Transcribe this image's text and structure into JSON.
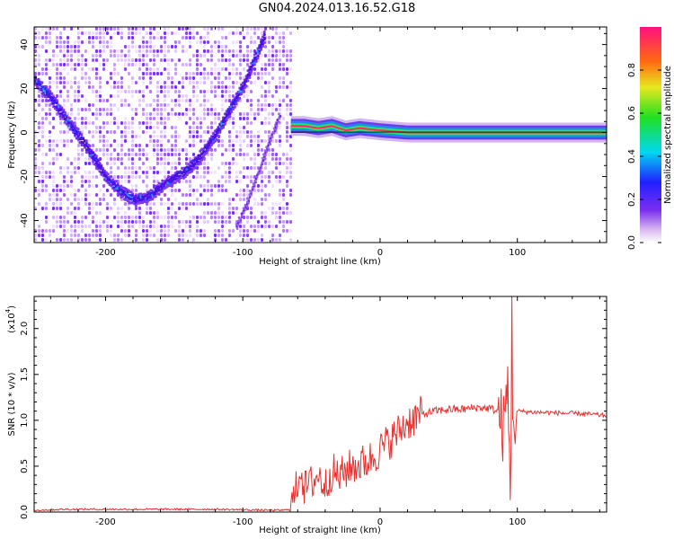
{
  "title": "GN04.2024.013.16.52.G18",
  "chart_data": [
    {
      "type": "heatmap",
      "panel": "top",
      "xlabel": "Height of straight line (km)",
      "ylabel": "Frequency (Hz)",
      "xlim": [
        -252,
        165
      ],
      "ylim": [
        -50,
        48
      ],
      "xticks": [
        -200,
        -100,
        0,
        100
      ],
      "xtick_labels": [
        "-200",
        "-100",
        "0",
        "100"
      ],
      "yticks": [
        -40,
        -20,
        0,
        20,
        40
      ],
      "ytick_labels": [
        "-40",
        "-20",
        "0",
        "20",
        "40"
      ],
      "noise_region_end_km": -65,
      "curve_a": {
        "name": "Doppler arc",
        "x": [
          -252,
          -240,
          -230,
          -220,
          -210,
          -200,
          -190,
          -180,
          -170,
          -160,
          -150,
          -140,
          -130,
          -120,
          -110,
          -100,
          -92,
          -85
        ],
        "y": [
          24,
          16,
          7,
          -1,
          -10,
          -20,
          -26,
          -30,
          -29,
          -24,
          -20,
          -16,
          -9,
          0,
          11,
          22,
          34,
          44
        ]
      },
      "curve_b": {
        "name": "secondary arc",
        "x": [
          -105,
          -98,
          -92,
          -86,
          -80,
          -74
        ],
        "y": [
          -42,
          -32,
          -22,
          -12,
          -2,
          8
        ]
      },
      "signal_line": {
        "x": [
          -65,
          -55,
          -45,
          -35,
          -25,
          -15,
          0,
          20,
          50,
          80,
          100,
          130,
          165
        ],
        "y": [
          3,
          3,
          2,
          3,
          1,
          2,
          1,
          0,
          0,
          0,
          0,
          0,
          0
        ]
      },
      "colorbar": {
        "label": "Normalized spectral amplitude",
        "range": [
          0.0,
          1.0
        ],
        "ticks": [
          0.0,
          0.2,
          0.4,
          0.6,
          0.8
        ],
        "tick_labels": [
          "0.0",
          "0.2",
          "0.4",
          "0.6",
          "0.8"
        ]
      }
    },
    {
      "type": "line",
      "panel": "bottom",
      "xlabel": "Height of straight line (km)",
      "ylabel": "SNR (10 * v/v)",
      "y_exponent_label": "(x10",
      "y_exponent": "4",
      "y_exponent_close": ")",
      "xlim": [
        -252,
        165
      ],
      "ylim": [
        0,
        2.35
      ],
      "xticks": [
        -200,
        -100,
        0,
        100
      ],
      "xtick_labels": [
        "-200",
        "-100",
        "0",
        "100"
      ],
      "yticks": [
        0.0,
        0.5,
        1.0,
        1.5,
        2.0
      ],
      "ytick_labels": [
        "0.0",
        "0.5",
        "1.0",
        "1.5",
        "2.0"
      ],
      "series": [
        {
          "name": "SNR",
          "color": "#e8312f",
          "x": [
            -252,
            -230,
            -200,
            -160,
            -120,
            -80,
            -70,
            -66,
            -62,
            -58,
            -55,
            -50,
            -45,
            -40,
            -35,
            -30,
            -25,
            -20,
            -15,
            -10,
            -5,
            0,
            10,
            20,
            30,
            40,
            50,
            60,
            70,
            80,
            86,
            90,
            93,
            95,
            96,
            97,
            98,
            100,
            110,
            130,
            150,
            165
          ],
          "y": [
            0.02,
            0.03,
            0.03,
            0.03,
            0.03,
            0.02,
            0.02,
            0.03,
            0.18,
            0.5,
            0.25,
            0.32,
            0.4,
            0.28,
            0.45,
            0.38,
            0.45,
            0.5,
            0.52,
            0.55,
            0.6,
            0.68,
            0.82,
            0.98,
            1.06,
            1.1,
            1.12,
            1.12,
            1.14,
            1.13,
            1.1,
            0.9,
            1.35,
            0.1,
            2.35,
            0.6,
            1.05,
            1.1,
            1.09,
            1.08,
            1.07,
            1.05
          ]
        }
      ]
    }
  ]
}
